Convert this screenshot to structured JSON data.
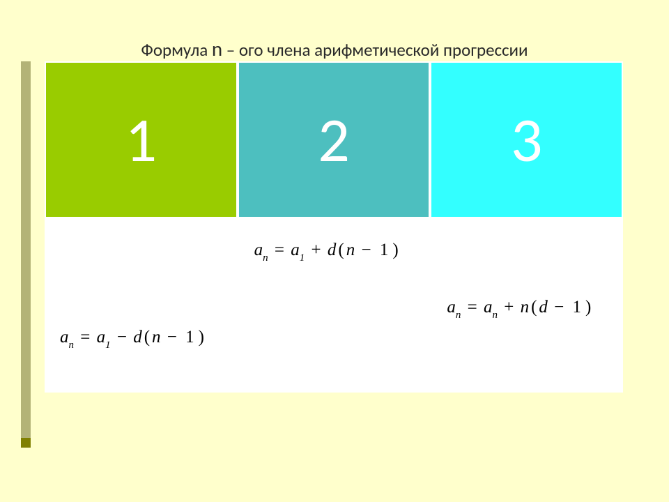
{
  "title": {
    "prefix": "Формула  ",
    "n": "n",
    "suffix": " – ого члена арифметической  прогрессии"
  },
  "grid": {
    "columns": 3,
    "row_top_height": 225,
    "row_bottom_height": 250,
    "border_color": "#ffffff",
    "bottom_bg": "#ffffff",
    "cells_top": [
      {
        "label": "1",
        "bg": "#99cc00",
        "text_color": "#ffffff"
      },
      {
        "label": "2",
        "bg": "#4dbfbf",
        "text_color": "#ffffff"
      },
      {
        "label": "3",
        "bg": "#33ffff",
        "text_color": "#ffffff"
      }
    ],
    "number_fontsize": 90,
    "formulas": [
      {
        "a_var": "a",
        "a_sub": "n",
        "eq": "=",
        "b_var": "a",
        "b_sub": "1",
        "op1": "−",
        "c_var": "d",
        "paren_open": "(",
        "d_var": "n",
        "op2": "−",
        "e_const": "1",
        "paren_close": ")",
        "position": "bottom"
      },
      {
        "a_var": "a",
        "a_sub": "n",
        "eq": "=",
        "b_var": "a",
        "b_sub": "1",
        "op1": "+",
        "c_var": "d",
        "paren_open": "(",
        "d_var": "n",
        "op2": "−",
        "e_const": "1",
        "paren_close": ")",
        "position": "top"
      },
      {
        "a_var": "a",
        "a_sub": "n",
        "eq": "=",
        "b_var": "a",
        "b_sub": "n",
        "op1": "+",
        "c_var": "n",
        "paren_open": "(",
        "d_var": "d",
        "op2": "−",
        "e_const": "1",
        "paren_close": ")",
        "position": "middle"
      }
    ],
    "formula_fontsize": 25,
    "formula_sub_fontsize": 15,
    "formula_color": "#000000"
  },
  "accent": {
    "bar_color": "#b3b377",
    "square_color": "#808000"
  },
  "background_color": "#ffffcc"
}
